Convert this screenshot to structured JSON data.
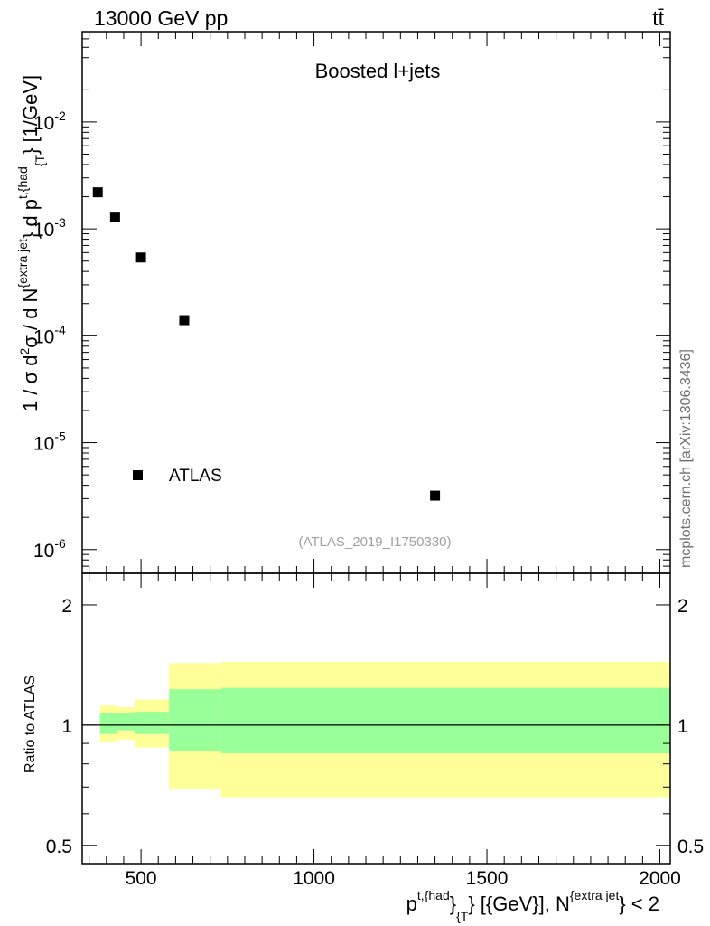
{
  "header": {
    "energy_label": "13000 GeV pp",
    "process_label": "tt̄"
  },
  "chart_data": [
    {
      "type": "scatter",
      "panel": "main",
      "title": "Boosted l+jets",
      "scale": "log",
      "ylim": [
        6e-07,
        0.07
      ],
      "ytick_exponents": [
        "-6",
        "-5",
        "-4",
        "-3",
        "-2"
      ],
      "ytick_base": "10",
      "ylabel": {
        "pre": "1 / σ d",
        "exp2": "2",
        "mid": "σ / d N",
        "sup1": "{extra jet",
        "mid2": "} d p",
        "sup2": "t,{had",
        "sub2": "{T",
        "post": "} [1/GeV]"
      },
      "series": [
        {
          "name": "ATLAS",
          "marker": "square",
          "color": "#000000",
          "x": [
            375,
            425,
            500,
            625,
            1350
          ],
          "y": [
            0.0022,
            0.0013,
            0.00054,
            0.00014,
            3.2e-06
          ]
        }
      ],
      "legend": {
        "label": "ATLAS",
        "position": "bottom-left"
      },
      "watermark": "(ATLAS_2019_I1750330)"
    },
    {
      "type": "area",
      "panel": "ratio",
      "ylabel": "Ratio to ATLAS",
      "ylim": [
        0.45,
        2.4
      ],
      "yticks": [
        0.5,
        1,
        2
      ],
      "ytick_labels": [
        "0.5",
        "1",
        "2"
      ],
      "reference_line": 1,
      "bin_edges": [
        350,
        400,
        450,
        550,
        700,
        2000
      ],
      "bands": [
        {
          "name": "total uncertainty",
          "color": "#ffff99",
          "lower": [
            0.91,
            0.92,
            0.88,
            0.69,
            0.66
          ],
          "upper": [
            1.12,
            1.11,
            1.16,
            1.43,
            1.44
          ]
        },
        {
          "name": "statistical uncertainty",
          "color": "#99ff99",
          "lower": [
            0.95,
            0.97,
            0.95,
            0.86,
            0.85
          ],
          "upper": [
            1.07,
            1.07,
            1.08,
            1.23,
            1.24
          ]
        }
      ],
      "xlim": [
        330,
        2030
      ],
      "xticks": [
        500,
        1000,
        1500,
        2000
      ],
      "xtick_labels": [
        "500",
        "1000",
        "1500",
        "2000"
      ],
      "xlabel": {
        "pre": "p",
        "sup1": "t,{had",
        "mid": "}",
        "sub1": "{T",
        "post": "} [{GeV}], N",
        "sup2": "{extra jet",
        "end": "} < 2"
      }
    }
  ],
  "side_label": "mcplots.cern.ch [arXiv:1306.3436]"
}
